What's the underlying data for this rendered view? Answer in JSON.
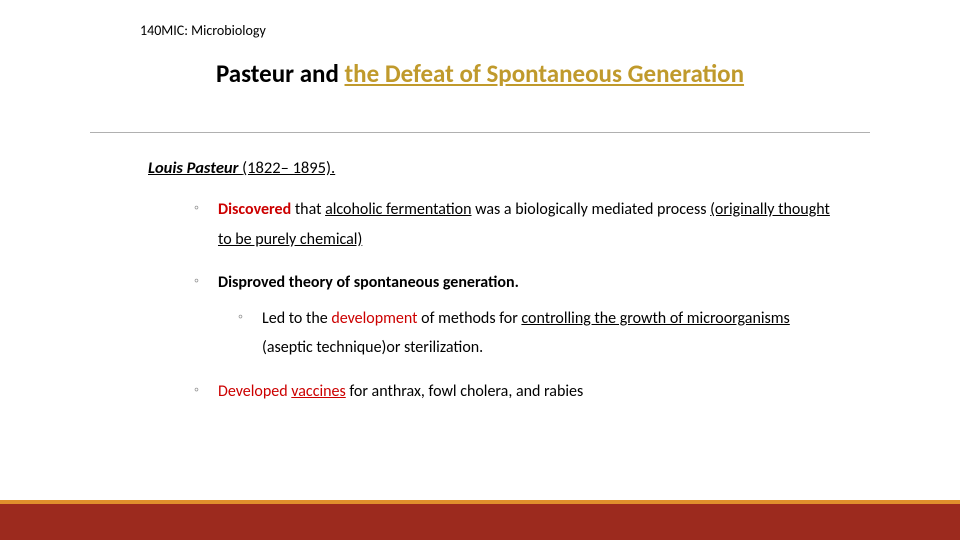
{
  "colors": {
    "accent": "#c09a2c",
    "red": "#cc0000",
    "bullet": "#9a9a9a",
    "footer_top": "#e08f2c",
    "footer_main": "#9c2a1e",
    "hr": "#b0b0b0",
    "black": "#000000",
    "bg": "#ffffff"
  },
  "header": "140MIC: Microbiology",
  "title": {
    "prefix": "Pasteur and ",
    "accent": "the Defeat of Spontaneous Generation"
  },
  "subhead": {
    "name": "Louis Pasteur ",
    "dates": "(1822– 1895).",
    "dates_trailing": ""
  },
  "bullets": {
    "b1": {
      "red": "Discovered",
      "mid1": " that ",
      "ul1": "alcoholic fermentation",
      "mid2": " was a biologically mediated process ",
      "ul2": "(originally thought to be purely chemical)"
    },
    "b2": {
      "text": "Disproved theory of spontaneous generation."
    },
    "b2sub": {
      "pre": "Led to the ",
      "red": "development",
      "mid": " of methods for ",
      "ul": "controlling the growth of microorganisms",
      "post": " (aseptic technique)or sterilization."
    },
    "b3": {
      "pre": "Developed ",
      "ul": "vaccines",
      "post": " for anthrax, fowl cholera, and rabies"
    }
  },
  "glyphs": {
    "ring": "◦"
  }
}
